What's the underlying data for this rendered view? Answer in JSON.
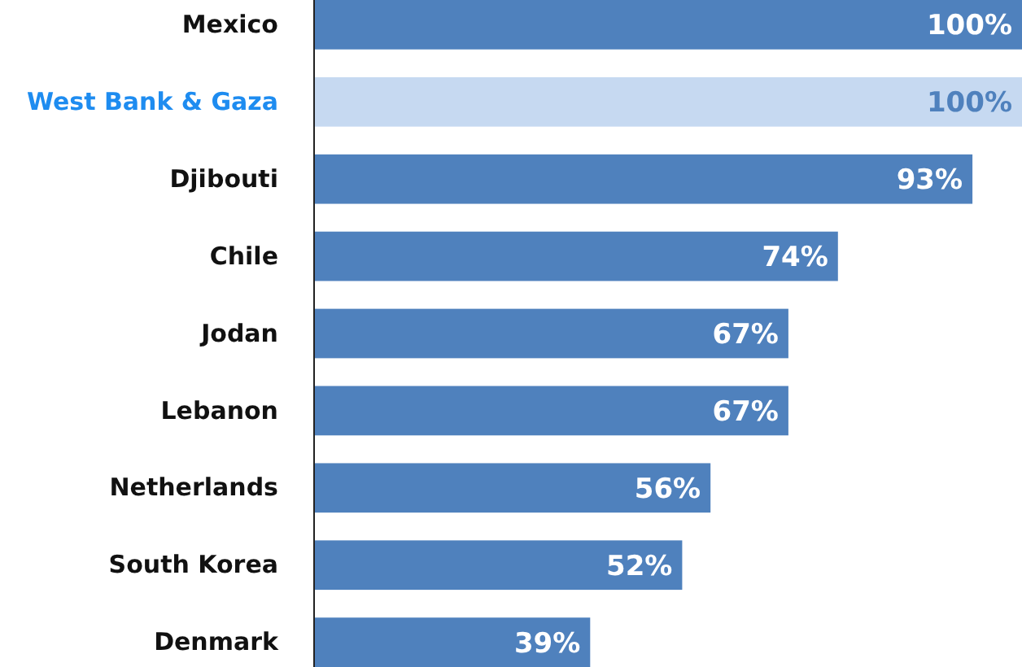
{
  "chart_data": {
    "type": "bar",
    "orientation": "horizontal",
    "categories": [
      "Mexico",
      "West Bank & Gaza",
      "Djibouti",
      "Chile",
      "Jodan",
      "Lebanon",
      "Netherlands",
      "South Korea",
      "Denmark"
    ],
    "values": [
      100,
      100,
      93,
      74,
      67,
      67,
      56,
      52,
      39
    ],
    "colors": [
      "#4f81bd",
      "#c6d9f1",
      "#4f81bd",
      "#4f81bd",
      "#4f81bd",
      "#4f81bd",
      "#4f81bd",
      "#4f81bd",
      "#4f81bd"
    ],
    "value_labels": [
      "100%",
      "100%",
      "93%",
      "74%",
      "67%",
      "67%",
      "56%",
      "52%",
      "39%"
    ],
    "xlim": [
      0,
      100
    ]
  }
}
